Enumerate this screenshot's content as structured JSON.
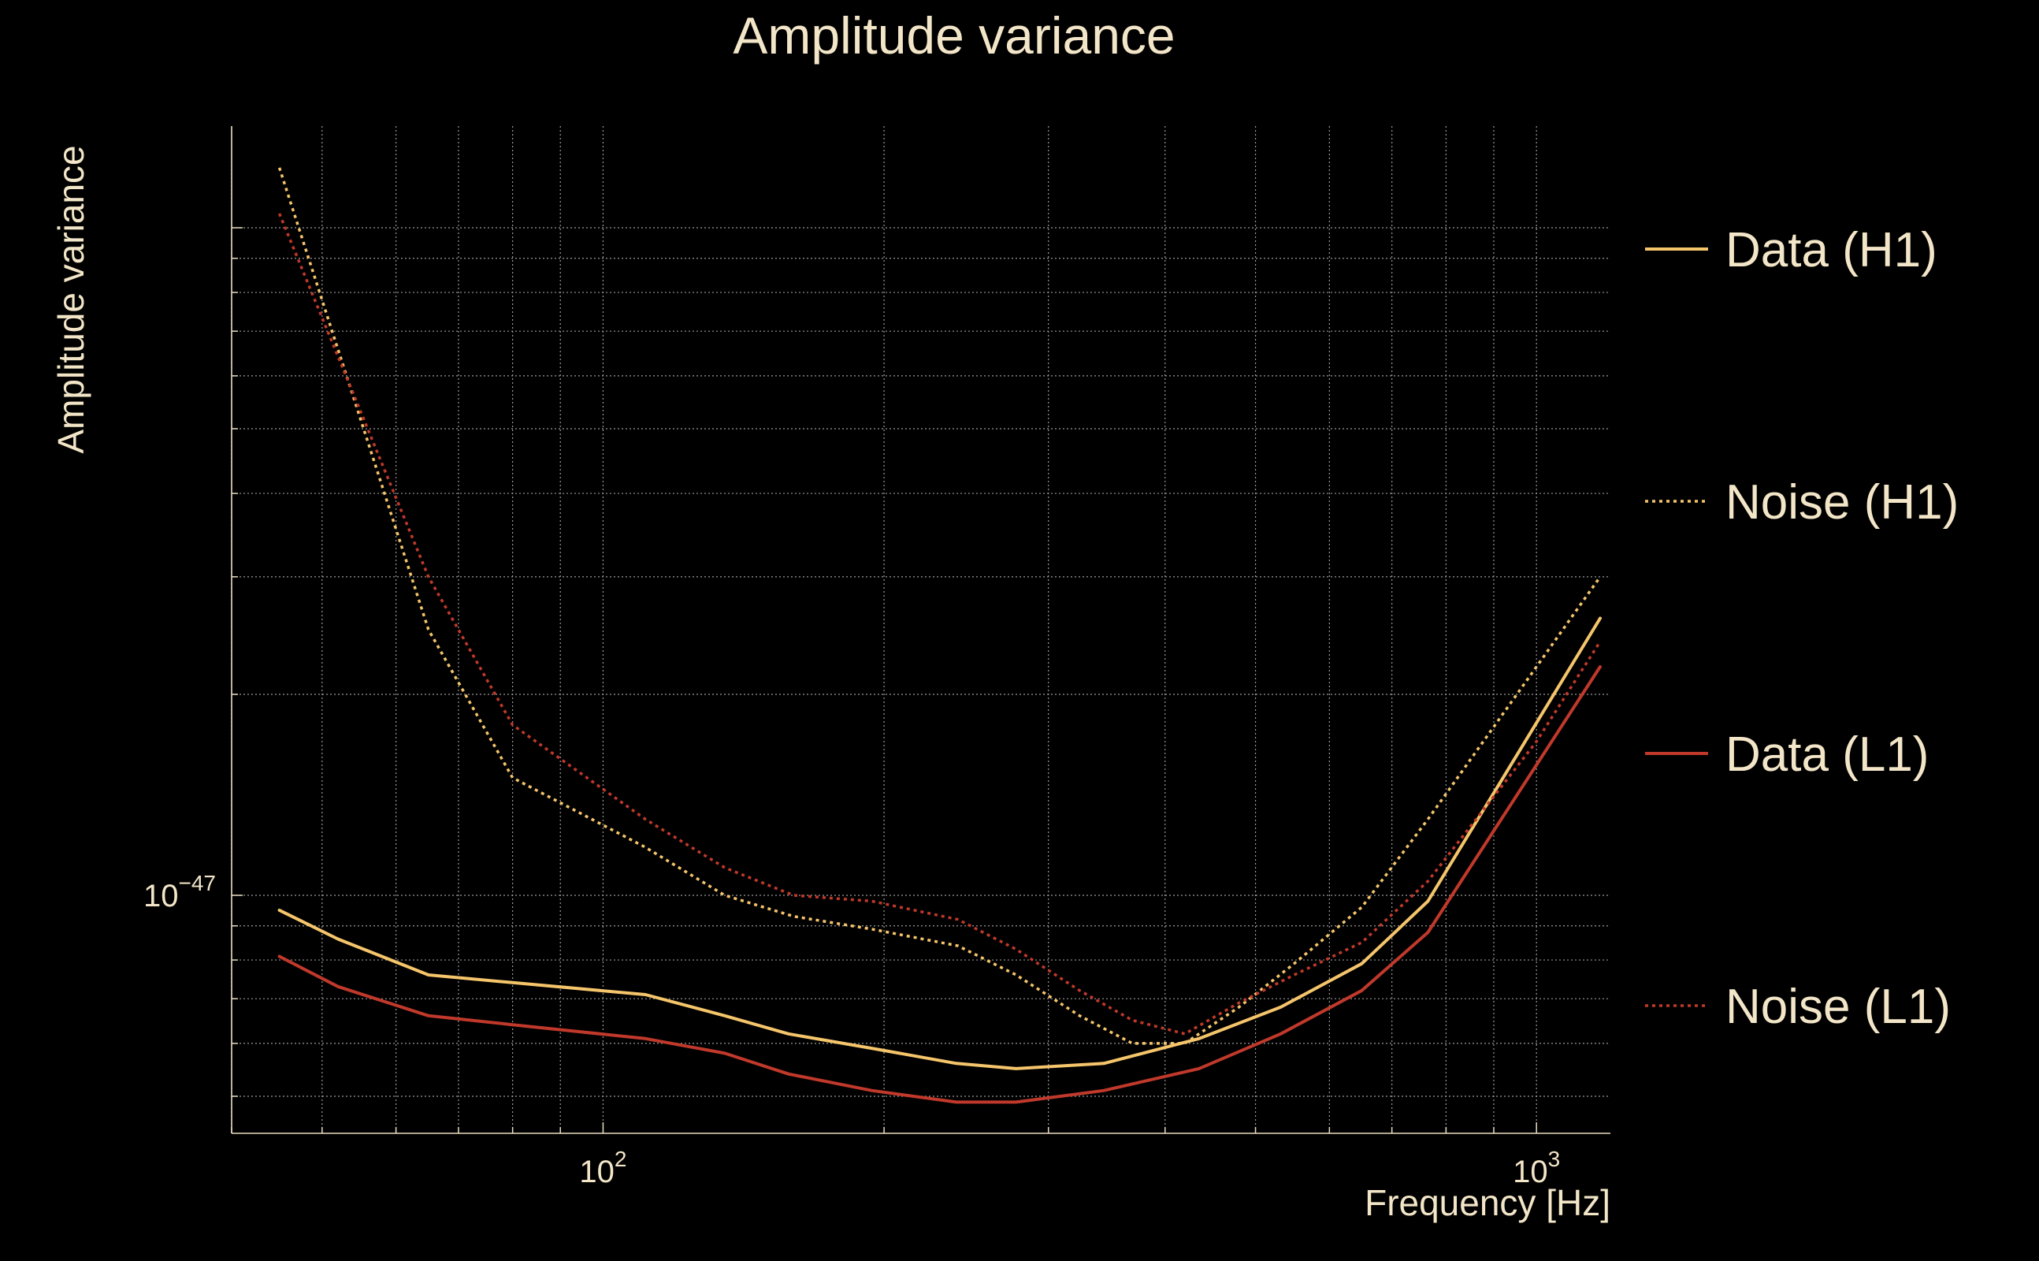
{
  "chart_data": {
    "type": "line",
    "title": "Amplitude variance",
    "xlabel": "Frequency [Hz]",
    "ylabel": "Amplitude variance",
    "xscale": "log",
    "yscale": "log",
    "xlim": [
      40,
      1200
    ],
    "ylim": [
      4.4e-48,
      1.42e-46
    ],
    "grid": true,
    "legend_position": "right",
    "x_ticks": [
      {
        "value": 100,
        "base": "10",
        "exp": "2"
      },
      {
        "value": 1000,
        "base": "10",
        "exp": "3"
      }
    ],
    "y_ticks": [
      {
        "value": 1e-47,
        "base": "10",
        "exp": "−47"
      }
    ],
    "series": [
      {
        "name": "Data (H1)",
        "color": "#f5c56b",
        "style": "solid",
        "x": [
          45,
          52,
          65,
          80,
          111,
          135,
          158,
          194,
          239,
          277,
          344,
          435,
          532,
          650,
          765,
          1170
        ],
        "y": [
          9.5e-48,
          8.6e-48,
          7.6e-48,
          7.4e-48,
          7.1e-48,
          6.6e-48,
          6.2e-48,
          5.9e-48,
          5.6e-48,
          5.5e-48,
          5.6e-48,
          6.1e-48,
          6.8e-48,
          7.9e-48,
          9.8e-48,
          2.6e-47
        ]
      },
      {
        "name": "Noise (H1)",
        "color": "#f5c56b",
        "style": "dotted",
        "x": [
          45,
          65,
          80,
          111,
          135,
          160,
          194,
          240,
          277,
          324,
          369,
          420,
          480,
          550,
          650,
          765,
          1000,
          1170
        ],
        "y": [
          1.23e-46,
          2.5e-47,
          1.5e-47,
          1.18e-47,
          1e-47,
          9.3e-48,
          8.9e-48,
          8.4e-48,
          7.6e-48,
          6.6e-48,
          6e-48,
          6e-48,
          6.8e-48,
          7.9e-48,
          9.6e-48,
          1.3e-47,
          2.2e-47,
          3e-47
        ]
      },
      {
        "name": "Data (L1)",
        "color": "#c0392b",
        "style": "solid",
        "x": [
          45,
          52,
          65,
          80,
          111,
          135,
          158,
          194,
          239,
          277,
          344,
          435,
          532,
          650,
          765,
          1170
        ],
        "y": [
          8.1e-48,
          7.3e-48,
          6.6e-48,
          6.4e-48,
          6.1e-48,
          5.8e-48,
          5.4e-48,
          5.1e-48,
          4.9e-48,
          4.9e-48,
          5.1e-48,
          5.5e-48,
          6.2e-48,
          7.2e-48,
          8.8e-48,
          2.2e-47
        ]
      },
      {
        "name": "Noise (L1)",
        "color": "#c0392b",
        "style": "dotted",
        "x": [
          45,
          65,
          80,
          111,
          135,
          160,
          194,
          240,
          277,
          324,
          369,
          420,
          480,
          550,
          650,
          765,
          1000,
          1170
        ],
        "y": [
          1.05e-46,
          3e-47,
          1.8e-47,
          1.3e-47,
          1.1e-47,
          1e-47,
          9.8e-48,
          9.2e-48,
          8.3e-48,
          7.2e-48,
          6.5e-48,
          6.2e-48,
          6.9e-48,
          7.6e-48,
          8.5e-48,
          1.05e-47,
          1.7e-47,
          2.4e-47
        ]
      }
    ]
  }
}
